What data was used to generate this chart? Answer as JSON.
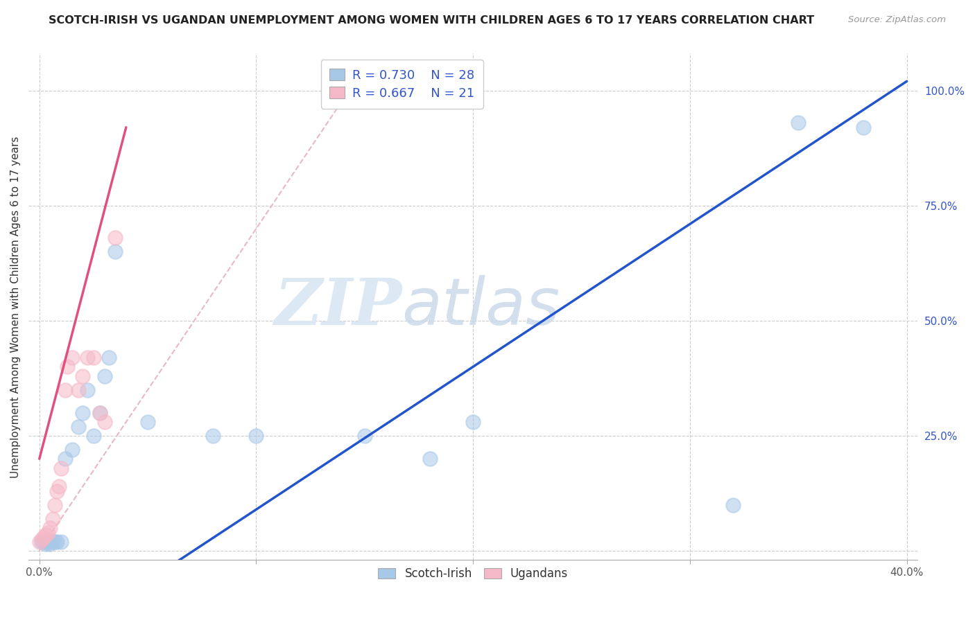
{
  "title": "SCOTCH-IRISH VS UGANDAN UNEMPLOYMENT AMONG WOMEN WITH CHILDREN AGES 6 TO 17 YEARS CORRELATION CHART",
  "source": "Source: ZipAtlas.com",
  "ylabel": "Unemployment Among Women with Children Ages 6 to 17 years",
  "xlim": [
    -0.005,
    0.405
  ],
  "ylim": [
    -0.02,
    1.08
  ],
  "xticks": [
    0.0,
    0.1,
    0.2,
    0.3,
    0.4
  ],
  "xticklabels": [
    "0.0%",
    "",
    "",
    "",
    "40.0%"
  ],
  "yticks": [
    0.25,
    0.5,
    0.75,
    1.0
  ],
  "yticklabels": [
    "25.0%",
    "50.0%",
    "75.0%",
    "100.0%"
  ],
  "legend_R": [
    "R = 0.730",
    "R = 0.667"
  ],
  "legend_N": [
    "N = 28",
    "N = 21"
  ],
  "scotch_irish_color": "#a8c8e8",
  "ugandan_color": "#f5b8c8",
  "scotch_irish_line_color": "#2255cc",
  "ugandan_line_color": "#e05080",
  "ref_line_color": "#e8b8c8",
  "background_color": "#ffffff",
  "watermark_zip": "ZIP",
  "watermark_atlas": "atlas",
  "scotch_irish_x": [
    0.001,
    0.002,
    0.003,
    0.004,
    0.005,
    0.006,
    0.007,
    0.008,
    0.01,
    0.012,
    0.015,
    0.018,
    0.02,
    0.022,
    0.025,
    0.028,
    0.03,
    0.032,
    0.035,
    0.05,
    0.08,
    0.1,
    0.15,
    0.18,
    0.2,
    0.32,
    0.35,
    0.38
  ],
  "scotch_irish_y": [
    0.02,
    0.02,
    0.015,
    0.02,
    0.015,
    0.02,
    0.02,
    0.02,
    0.02,
    0.2,
    0.22,
    0.27,
    0.3,
    0.35,
    0.25,
    0.3,
    0.38,
    0.42,
    0.65,
    0.28,
    0.25,
    0.25,
    0.25,
    0.2,
    0.28,
    0.1,
    0.93,
    0.92
  ],
  "ugandan_x": [
    0.0,
    0.001,
    0.002,
    0.003,
    0.004,
    0.005,
    0.006,
    0.007,
    0.008,
    0.009,
    0.01,
    0.012,
    0.013,
    0.015,
    0.018,
    0.02,
    0.022,
    0.025,
    0.028,
    0.03,
    0.035
  ],
  "ugandan_y": [
    0.02,
    0.025,
    0.03,
    0.035,
    0.04,
    0.05,
    0.07,
    0.1,
    0.13,
    0.14,
    0.18,
    0.35,
    0.4,
    0.42,
    0.35,
    0.38,
    0.42,
    0.42,
    0.3,
    0.28,
    0.68
  ]
}
